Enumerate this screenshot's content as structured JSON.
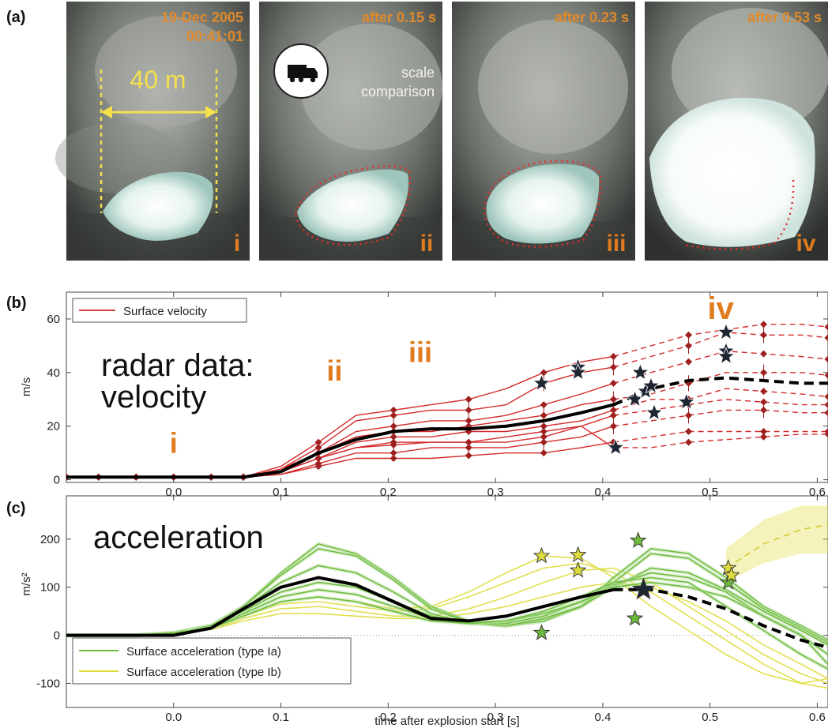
{
  "panel_labels": {
    "a": "(a)",
    "b": "(b)",
    "c": "(c)"
  },
  "photos": [
    {
      "roman": "i",
      "caption": [
        "19-Dec 2005",
        "00:41:01"
      ]
    },
    {
      "roman": "ii",
      "caption": [
        "after 0.15 s"
      ]
    },
    {
      "roman": "iii",
      "caption": [
        "after 0.23 s"
      ]
    },
    {
      "roman": "iv",
      "caption": [
        "after 0.53 s"
      ]
    }
  ],
  "scale_label": "40 m",
  "scale_comparison": [
    "scale",
    "comparison"
  ],
  "colors": {
    "velocity": "#d42a2a",
    "marker": "#9e2020",
    "type_ia": "#6dbb3c",
    "type_ib": "#dedc3c",
    "mean": "#000000",
    "star": "#1f2633",
    "annotation": "#e07b1e"
  },
  "chart_data": [
    {
      "type": "line",
      "panel": "(b)",
      "annotation_main": [
        "radar data:",
        "velocity"
      ],
      "stage_labels": [
        {
          "text": "i",
          "x": 0.0,
          "y": 10
        },
        {
          "text": "ii",
          "x": 0.15,
          "y": 37
        },
        {
          "text": "iii",
          "x": 0.23,
          "y": 44
        },
        {
          "text": "iv",
          "x": 0.51,
          "y": 60
        }
      ],
      "ylabel": "m/s",
      "xlim": [
        -0.1,
        0.61
      ],
      "ylim": [
        -1,
        70
      ],
      "xticks": [
        "0.0",
        "0.1",
        "0.2",
        "0.3",
        "0.4",
        "0.5",
        "0.6"
      ],
      "yticks": [
        "0",
        "20",
        "40",
        "60"
      ],
      "legend": [
        "Surface velocity"
      ],
      "legend_position": "top-left",
      "x": [
        -0.1,
        -0.07,
        -0.035,
        0.0,
        0.035,
        0.065,
        0.1,
        0.135,
        0.17,
        0.205,
        0.24,
        0.275,
        0.31,
        0.345,
        0.38,
        0.41,
        0.445,
        0.48,
        0.515,
        0.55,
        0.585,
        0.61
      ],
      "mean": [
        1,
        1,
        1,
        1,
        1,
        1,
        3,
        10,
        15,
        18,
        19,
        19,
        20,
        22,
        25,
        28,
        34,
        37,
        38,
        37,
        36,
        36
      ],
      "mean_dashed_from": 0.41,
      "series": [
        {
          "values": [
            1,
            1,
            1,
            1,
            1,
            1,
            4,
            12,
            22,
            24,
            26,
            26,
            28,
            36,
            40,
            42,
            46,
            50,
            55,
            54,
            54,
            53
          ]
        },
        {
          "values": [
            1,
            1,
            1,
            1,
            1,
            1,
            5,
            14,
            24,
            26,
            28,
            30,
            34,
            40,
            44,
            46,
            50,
            54,
            56,
            58,
            58,
            57
          ]
        },
        {
          "values": [
            1,
            1,
            1,
            1,
            1,
            1,
            4,
            10,
            18,
            20,
            22,
            22,
            24,
            28,
            32,
            36,
            40,
            44,
            48,
            47,
            46,
            45
          ]
        },
        {
          "values": [
            1,
            1,
            1,
            1,
            1,
            1,
            3,
            10,
            16,
            18,
            18,
            20,
            22,
            24,
            28,
            30,
            32,
            36,
            40,
            40,
            40,
            39
          ]
        },
        {
          "values": [
            1,
            1,
            1,
            1,
            1,
            1,
            3,
            8,
            14,
            16,
            16,
            18,
            18,
            20,
            22,
            26,
            30,
            30,
            34,
            33,
            32,
            31
          ]
        },
        {
          "values": [
            1,
            1,
            1,
            1,
            1,
            1,
            3,
            8,
            12,
            14,
            14,
            14,
            16,
            18,
            20,
            24,
            26,
            28,
            30,
            29,
            28,
            28
          ]
        },
        {
          "values": [
            1,
            1,
            1,
            1,
            1,
            1,
            2,
            6,
            10,
            10,
            12,
            12,
            12,
            14,
            16,
            20,
            22,
            24,
            26,
            26,
            25,
            25
          ]
        },
        {
          "values": [
            1,
            1,
            1,
            1,
            1,
            1,
            2,
            5,
            8,
            8,
            8,
            9,
            10,
            10,
            12,
            14,
            16,
            18,
            18,
            18,
            18,
            18
          ]
        },
        {
          "values": [
            1,
            1,
            1,
            1,
            1,
            1,
            3,
            8,
            12,
            13,
            14,
            14,
            14,
            16,
            20,
            12,
            12,
            14,
            15,
            16,
            17,
            17
          ]
        }
      ],
      "stars": [
        {
          "x": 0.343,
          "y": 36
        },
        {
          "x": 0.377,
          "y": 42
        },
        {
          "x": 0.377,
          "y": 40
        },
        {
          "x": 0.412,
          "y": 12
        },
        {
          "x": 0.435,
          "y": 40
        },
        {
          "x": 0.43,
          "y": 30
        },
        {
          "x": 0.44,
          "y": 33
        },
        {
          "x": 0.445,
          "y": 35
        },
        {
          "x": 0.448,
          "y": 25
        },
        {
          "x": 0.478,
          "y": 29
        },
        {
          "x": 0.515,
          "y": 55
        },
        {
          "x": 0.515,
          "y": 48
        },
        {
          "x": 0.515,
          "y": 46
        }
      ]
    },
    {
      "type": "line",
      "panel": "(c)",
      "annotation_main": [
        "acceleration"
      ],
      "ylabel": "m/s²",
      "xlabel": "time after explosion start [s]",
      "xlim": [
        -0.1,
        0.61
      ],
      "ylim": [
        -150,
        290
      ],
      "xticks": [
        "0.0",
        "0.1",
        "0.2",
        "0.3",
        "0.4",
        "0.5",
        "0.6"
      ],
      "yticks": [
        "-100",
        "0",
        "100",
        "200"
      ],
      "legend": [
        "Surface acceleration (type Ia)",
        "Surface acceleration (type Ib)"
      ],
      "legend_position": "bottom-left",
      "x": [
        -0.1,
        -0.07,
        -0.035,
        0.0,
        0.035,
        0.065,
        0.1,
        0.135,
        0.17,
        0.205,
        0.24,
        0.275,
        0.31,
        0.345,
        0.38,
        0.41,
        0.445,
        0.48,
        0.515,
        0.55,
        0.585,
        0.61
      ],
      "mean": [
        0,
        0,
        0,
        0,
        15,
        55,
        100,
        120,
        105,
        70,
        35,
        30,
        40,
        60,
        80,
        95,
        95,
        80,
        55,
        20,
        -10,
        -25
      ],
      "mean_dashed_from": 0.44,
      "series_ia": [
        {
          "values": [
            0,
            0,
            0,
            5,
            20,
            60,
            130,
            190,
            170,
            120,
            60,
            30,
            20,
            30,
            60,
            120,
            180,
            170,
            120,
            60,
            20,
            -10
          ]
        },
        {
          "values": [
            0,
            0,
            0,
            5,
            20,
            60,
            125,
            180,
            165,
            115,
            55,
            28,
            20,
            30,
            60,
            110,
            170,
            160,
            110,
            55,
            15,
            -15
          ]
        },
        {
          "values": [
            0,
            0,
            0,
            5,
            20,
            55,
            110,
            145,
            130,
            90,
            45,
            25,
            20,
            35,
            60,
            100,
            140,
            130,
            95,
            50,
            10,
            -20
          ]
        },
        {
          "values": [
            0,
            0,
            0,
            5,
            20,
            50,
            90,
            110,
            100,
            70,
            40,
            25,
            25,
            40,
            70,
            105,
            130,
            120,
            90,
            40,
            0,
            -40
          ]
        },
        {
          "values": [
            0,
            0,
            0,
            5,
            15,
            45,
            80,
            95,
            85,
            60,
            35,
            25,
            30,
            45,
            70,
            100,
            110,
            100,
            80,
            40,
            0,
            -60
          ]
        },
        {
          "values": [
            0,
            0,
            0,
            5,
            15,
            40,
            70,
            80,
            70,
            50,
            30,
            25,
            30,
            50,
            80,
            110,
            120,
            110,
            60,
            10,
            -40,
            -70
          ]
        }
      ],
      "series_ib": [
        {
          "values": [
            0,
            0,
            0,
            5,
            15,
            40,
            70,
            80,
            70,
            55,
            60,
            90,
            130,
            165,
            160,
            120,
            60,
            10,
            -40,
            -80,
            -100,
            -90
          ]
        },
        {
          "values": [
            0,
            0,
            0,
            5,
            15,
            40,
            65,
            70,
            60,
            50,
            55,
            80,
            110,
            140,
            150,
            130,
            90,
            40,
            -10,
            -60,
            -100,
            -110
          ]
        },
        {
          "values": [
            0,
            0,
            0,
            5,
            12,
            35,
            55,
            60,
            50,
            40,
            40,
            55,
            80,
            110,
            135,
            140,
            110,
            60,
            10,
            -40,
            -80,
            -100
          ]
        },
        {
          "values": [
            0,
            0,
            0,
            5,
            12,
            30,
            45,
            45,
            40,
            35,
            35,
            45,
            60,
            80,
            100,
            110,
            100,
            70,
            30,
            -20,
            -60,
            -90
          ]
        }
      ],
      "ib_dashed": {
        "x": [
          0.515,
          0.55,
          0.585,
          0.61
        ],
        "values": [
          140,
          190,
          220,
          230
        ],
        "band_low": [
          110,
          150,
          170,
          170
        ],
        "band_high": [
          180,
          240,
          270,
          270
        ]
      },
      "stars": [
        {
          "x": 0.343,
          "y": 165,
          "type": "Ib"
        },
        {
          "x": 0.377,
          "y": 167,
          "type": "Ib"
        },
        {
          "x": 0.377,
          "y": 135,
          "type": "Ib"
        },
        {
          "x": 0.343,
          "y": 5,
          "type": "Ia"
        },
        {
          "x": 0.433,
          "y": 197,
          "type": "Ia"
        },
        {
          "x": 0.43,
          "y": 35,
          "type": "Ia"
        },
        {
          "x": 0.438,
          "y": 95,
          "type": "mean"
        },
        {
          "x": 0.517,
          "y": 140,
          "type": "Ib"
        },
        {
          "x": 0.517,
          "y": 110,
          "type": "Ia"
        },
        {
          "x": 0.52,
          "y": 125,
          "type": "Ib"
        }
      ]
    }
  ]
}
